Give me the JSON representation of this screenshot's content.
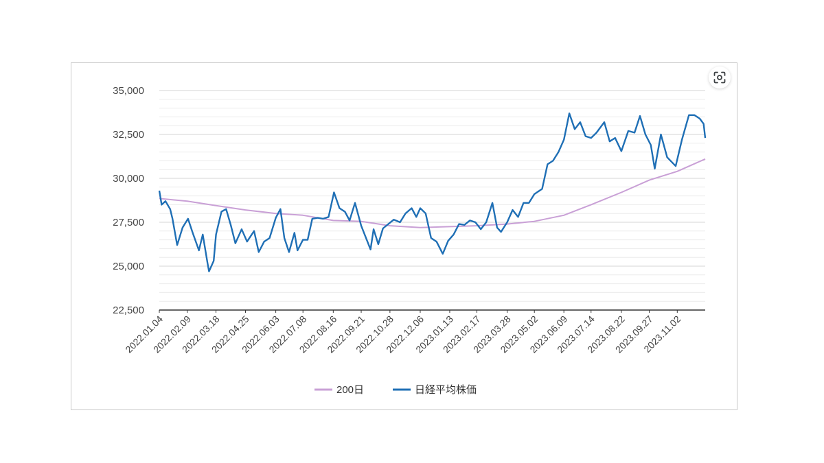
{
  "lens_button": {
    "icon": "lens-scan-icon"
  },
  "chart_data": {
    "type": "line",
    "title": "",
    "xlabel": "",
    "ylabel": "",
    "ylim": [
      22500,
      35000
    ],
    "yticks": [
      22500,
      25000,
      27500,
      30000,
      32500,
      35000
    ],
    "yticks_labels": [
      "22,500",
      "25,000",
      "27,500",
      "30,000",
      "32,500",
      "35,000"
    ],
    "minor_grid_step": 500,
    "xlim": [
      "2022-01-04",
      "2023-12-08"
    ],
    "xtick_labels": [
      "2022.01.04",
      "2022.02.09",
      "2022.03.18",
      "2022.04.25",
      "2022.06.03",
      "2022.07.08",
      "2022.08.16",
      "2022.09.21",
      "2022.10.28",
      "2022.12.06",
      "2023.01.13",
      "2023.02.17",
      "2023.03.28",
      "2023.05.02",
      "2023.06.09",
      "2023.07.14",
      "2023.08.22",
      "2023.09.27",
      "2023.11.02"
    ],
    "grid": true,
    "legend": "bottom",
    "series": [
      {
        "name": "200日",
        "color": "#c9a0d6",
        "points": [
          [
            "2022-01-04",
            28850
          ],
          [
            "2022-02-09",
            28700
          ],
          [
            "2022-03-18",
            28450
          ],
          [
            "2022-04-25",
            28200
          ],
          [
            "2022-06-03",
            28000
          ],
          [
            "2022-07-08",
            27900
          ],
          [
            "2022-08-16",
            27600
          ],
          [
            "2022-09-21",
            27550
          ],
          [
            "2022-10-28",
            27300
          ],
          [
            "2022-12-06",
            27200
          ],
          [
            "2023-01-13",
            27250
          ],
          [
            "2023-02-17",
            27300
          ],
          [
            "2023-03-28",
            27400
          ],
          [
            "2023-05-02",
            27550
          ],
          [
            "2023-06-09",
            27900
          ],
          [
            "2023-07-14",
            28500
          ],
          [
            "2023-08-22",
            29200
          ],
          [
            "2023-09-27",
            29900
          ],
          [
            "2023-11-02",
            30400
          ],
          [
            "2023-12-08",
            31100
          ]
        ]
      },
      {
        "name": "日経平均株価",
        "color": "#1f6fb5",
        "points": [
          [
            "2022-01-04",
            29300
          ],
          [
            "2022-01-07",
            28500
          ],
          [
            "2022-01-12",
            28700
          ],
          [
            "2022-01-18",
            28250
          ],
          [
            "2022-01-21",
            27700
          ],
          [
            "2022-01-27",
            26200
          ],
          [
            "2022-02-03",
            27200
          ],
          [
            "2022-02-10",
            27700
          ],
          [
            "2022-02-16",
            26900
          ],
          [
            "2022-02-24",
            25900
          ],
          [
            "2022-03-01",
            26800
          ],
          [
            "2022-03-07",
            25200
          ],
          [
            "2022-03-09",
            24700
          ],
          [
            "2022-03-15",
            25300
          ],
          [
            "2022-03-18",
            26800
          ],
          [
            "2022-03-25",
            28100
          ],
          [
            "2022-03-31",
            28250
          ],
          [
            "2022-04-06",
            27350
          ],
          [
            "2022-04-12",
            26300
          ],
          [
            "2022-04-20",
            27100
          ],
          [
            "2022-04-27",
            26400
          ],
          [
            "2022-05-06",
            27000
          ],
          [
            "2022-05-12",
            25800
          ],
          [
            "2022-05-19",
            26400
          ],
          [
            "2022-05-26",
            26600
          ],
          [
            "2022-06-03",
            27750
          ],
          [
            "2022-06-09",
            28250
          ],
          [
            "2022-06-14",
            26600
          ],
          [
            "2022-06-20",
            25800
          ],
          [
            "2022-06-27",
            26900
          ],
          [
            "2022-07-01",
            25900
          ],
          [
            "2022-07-08",
            26500
          ],
          [
            "2022-07-14",
            26500
          ],
          [
            "2022-07-20",
            27700
          ],
          [
            "2022-07-27",
            27750
          ],
          [
            "2022-08-03",
            27700
          ],
          [
            "2022-08-10",
            27800
          ],
          [
            "2022-08-17",
            29200
          ],
          [
            "2022-08-24",
            28300
          ],
          [
            "2022-08-31",
            28100
          ],
          [
            "2022-09-06",
            27600
          ],
          [
            "2022-09-13",
            28600
          ],
          [
            "2022-09-21",
            27300
          ],
          [
            "2022-09-29",
            26400
          ],
          [
            "2022-10-03",
            25950
          ],
          [
            "2022-10-07",
            27100
          ],
          [
            "2022-10-13",
            26250
          ],
          [
            "2022-10-19",
            27150
          ],
          [
            "2022-10-26",
            27400
          ],
          [
            "2022-11-02",
            27650
          ],
          [
            "2022-11-10",
            27500
          ],
          [
            "2022-11-17",
            28000
          ],
          [
            "2022-11-25",
            28300
          ],
          [
            "2022-12-01",
            27800
          ],
          [
            "2022-12-06",
            28300
          ],
          [
            "2022-12-13",
            28000
          ],
          [
            "2022-12-20",
            26600
          ],
          [
            "2022-12-27",
            26400
          ],
          [
            "2023-01-04",
            25700
          ],
          [
            "2023-01-11",
            26450
          ],
          [
            "2023-01-18",
            26800
          ],
          [
            "2023-01-25",
            27400
          ],
          [
            "2023-02-01",
            27350
          ],
          [
            "2023-02-08",
            27600
          ],
          [
            "2023-02-15",
            27500
          ],
          [
            "2023-02-22",
            27100
          ],
          [
            "2023-03-01",
            27500
          ],
          [
            "2023-03-09",
            28600
          ],
          [
            "2023-03-15",
            27200
          ],
          [
            "2023-03-20",
            26950
          ],
          [
            "2023-03-28",
            27500
          ],
          [
            "2023-04-04",
            28200
          ],
          [
            "2023-04-11",
            27800
          ],
          [
            "2023-04-18",
            28600
          ],
          [
            "2023-04-25",
            28600
          ],
          [
            "2023-05-02",
            29100
          ],
          [
            "2023-05-12",
            29400
          ],
          [
            "2023-05-19",
            30800
          ],
          [
            "2023-05-26",
            31000
          ],
          [
            "2023-06-02",
            31500
          ],
          [
            "2023-06-09",
            32200
          ],
          [
            "2023-06-16",
            33700
          ],
          [
            "2023-06-23",
            32800
          ],
          [
            "2023-06-30",
            33200
          ],
          [
            "2023-07-07",
            32400
          ],
          [
            "2023-07-14",
            32300
          ],
          [
            "2023-07-21",
            32600
          ],
          [
            "2023-07-31",
            33200
          ],
          [
            "2023-08-07",
            32100
          ],
          [
            "2023-08-14",
            32300
          ],
          [
            "2023-08-22",
            31550
          ],
          [
            "2023-08-31",
            32700
          ],
          [
            "2023-09-08",
            32600
          ],
          [
            "2023-09-15",
            33550
          ],
          [
            "2023-09-22",
            32500
          ],
          [
            "2023-09-29",
            31900
          ],
          [
            "2023-10-04",
            30550
          ],
          [
            "2023-10-12",
            32500
          ],
          [
            "2023-10-20",
            31200
          ],
          [
            "2023-10-31",
            30700
          ],
          [
            "2023-11-08",
            32200
          ],
          [
            "2023-11-17",
            33600
          ],
          [
            "2023-11-24",
            33600
          ],
          [
            "2023-12-01",
            33400
          ],
          [
            "2023-12-06",
            33100
          ],
          [
            "2023-12-08",
            32300
          ]
        ]
      }
    ]
  }
}
